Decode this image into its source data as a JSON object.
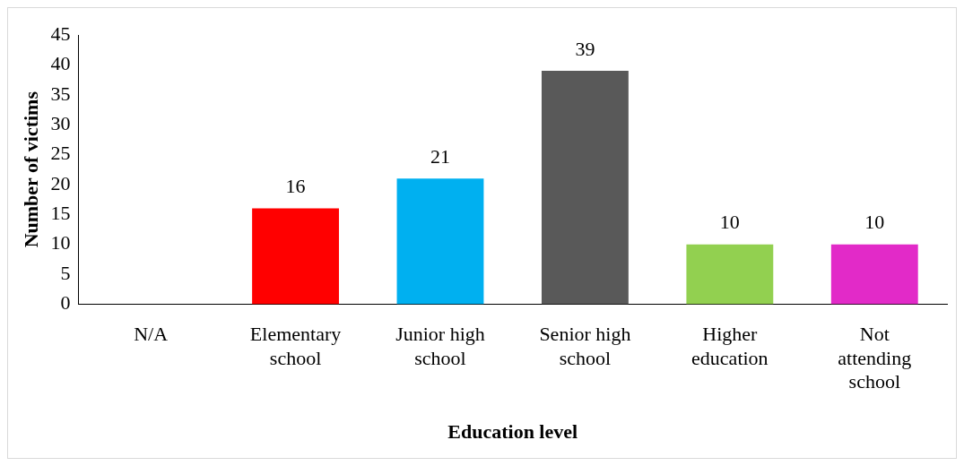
{
  "chart_data": {
    "type": "bar",
    "xlabel": "Education level",
    "ylabel": "Number of victims",
    "categories": [
      "N/A",
      "Elementary school",
      "Junior high school",
      "Senior high school",
      "Higher education",
      "Not attending school"
    ],
    "values": [
      0,
      16,
      21,
      39,
      10,
      10
    ],
    "colors": [
      "#595959",
      "#ff0000",
      "#00b0f0",
      "#595959",
      "#92d050",
      "#e22ac8"
    ],
    "value_labels": [
      null,
      "16",
      "21",
      "39",
      "10",
      "10"
    ],
    "ylim": [
      0,
      45
    ],
    "yticks": [
      0,
      5,
      10,
      15,
      20,
      25,
      30,
      35,
      40,
      45
    ],
    "grid": false,
    "legend": false
  }
}
